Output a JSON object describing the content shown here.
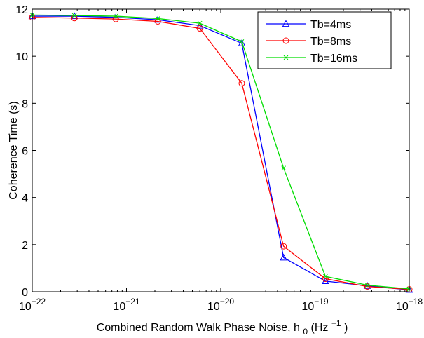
{
  "chart_data": {
    "type": "line",
    "xscale": "log",
    "x": [
      1e-22,
      2.8e-22,
      7.7e-22,
      2.15e-21,
      6e-21,
      1.67e-20,
      4.64e-20,
      1.29e-19,
      3.59e-19,
      1e-18
    ],
    "xlim": [
      1e-22,
      1e-18
    ],
    "ylim": [
      0,
      12
    ],
    "xticks": [
      {
        "base": "10",
        "exp": "−22"
      },
      {
        "base": "10",
        "exp": "−21"
      },
      {
        "base": "10",
        "exp": "−20"
      },
      {
        "base": "10",
        "exp": "−19"
      },
      {
        "base": "10",
        "exp": "−18"
      }
    ],
    "yticks": [
      "0",
      "2",
      "4",
      "6",
      "8",
      "10",
      "12"
    ],
    "xlabel": {
      "main": "Combined Random Walk Phase Noise, h",
      "sub": "0",
      "mid": " (Hz",
      "sup": "−1",
      "end": ")"
    },
    "ylabel": "Coherence Time (s)",
    "grid": false,
    "legend_position": "top-right",
    "series": [
      {
        "name": "Tb=4ms",
        "color": "#0000ff",
        "marker": "triangle",
        "values": [
          11.7,
          11.7,
          11.65,
          11.55,
          11.3,
          10.55,
          1.45,
          0.45,
          0.25,
          0.08
        ]
      },
      {
        "name": "Tb=8ms",
        "color": "#ff0000",
        "marker": "circle",
        "values": [
          11.65,
          11.62,
          11.58,
          11.48,
          11.18,
          8.85,
          1.93,
          0.55,
          0.22,
          0.1
        ]
      },
      {
        "name": "Tb=16ms",
        "color": "#00dd00",
        "marker": "x",
        "values": [
          11.75,
          11.73,
          11.7,
          11.6,
          11.4,
          10.62,
          5.25,
          0.65,
          0.28,
          0.12
        ]
      }
    ]
  }
}
